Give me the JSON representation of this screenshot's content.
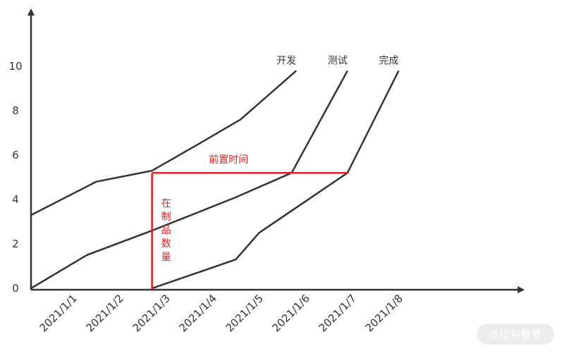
{
  "chart_data": {
    "type": "line",
    "x": [
      "2021/1/1",
      "2021/1/2",
      "2021/1/3",
      "2021/1/4",
      "2021/1/5",
      "2021/1/6",
      "2021/1/7",
      "2021/1/8"
    ],
    "y_ticks": [
      "0",
      "2",
      "4",
      "6",
      "8",
      "10"
    ],
    "ylim": [
      0,
      11.5
    ],
    "series": [
      {
        "name": "开发",
        "points": [
          [
            0,
            3.3
          ],
          [
            1.4,
            4.8
          ],
          [
            2.6,
            5.3
          ],
          [
            3.6,
            6.5
          ],
          [
            4.5,
            7.6
          ],
          [
            5.7,
            9.8
          ]
        ]
      },
      {
        "name": "测试",
        "points": [
          [
            0,
            0
          ],
          [
            1.2,
            1.5
          ],
          [
            2.6,
            2.6
          ],
          [
            4.4,
            4.1
          ],
          [
            5.6,
            5.2
          ],
          [
            6.8,
            9.8
          ]
        ]
      },
      {
        "name": "完成",
        "points": [
          [
            2.6,
            0
          ],
          [
            4.4,
            1.3
          ],
          [
            4.9,
            2.5
          ],
          [
            6.8,
            5.2
          ],
          [
            7.9,
            9.8
          ]
        ]
      }
    ],
    "annotations": {
      "lead_time": {
        "label": "前置时间",
        "y": 5.2,
        "x_start": 2.6,
        "x_end": 6.8
      },
      "wip": {
        "label": "在制品数量",
        "x": 2.6,
        "y_start": 0,
        "y_end": 5.2
      }
    },
    "colors": {
      "series": "#333333",
      "annotation": "#e02020",
      "axis": "#333333"
    }
  },
  "watermark": "@拉勾教育"
}
